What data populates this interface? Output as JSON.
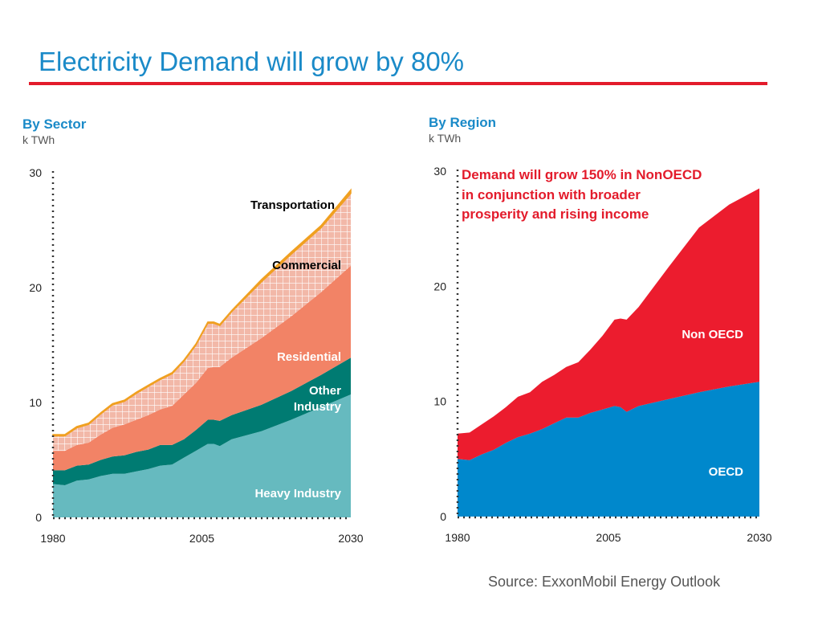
{
  "title": "Electricity Demand will grow by 80%",
  "source": "Source:  ExxonMobil Energy Outlook",
  "colors": {
    "title": "#1a8ac8",
    "rule": "#e31b2b",
    "heavy_industry": "#66babf",
    "other_industry": "#007b72",
    "residential": "#f28366",
    "commercial": "#f2b8a8",
    "transportation": "#f0a020",
    "oecd": "#0088cc",
    "non_oecd": "#ec1c2e"
  },
  "chart_data": [
    {
      "type": "area",
      "subtitle": "By Sector",
      "unit_label": "k TWh",
      "stacked": true,
      "x_ticks": [
        "1980",
        "2005",
        "2030"
      ],
      "y_ticks": [
        "0",
        "10",
        "20",
        "30"
      ],
      "ylim": [
        0,
        30
      ],
      "xlim": [
        1980,
        2030
      ],
      "grid": false,
      "x": [
        1980,
        1982,
        1984,
        1986,
        1988,
        1990,
        1992,
        1994,
        1996,
        1998,
        2000,
        2002,
        2004,
        2006,
        2007,
        2008,
        2010,
        2015,
        2020,
        2025,
        2030
      ],
      "series": [
        {
          "name": "Heavy Industry",
          "label": "Heavy Industry",
          "values": [
            2.9,
            2.8,
            3.2,
            3.3,
            3.6,
            3.8,
            3.8,
            4.0,
            4.2,
            4.5,
            4.6,
            5.2,
            5.8,
            6.4,
            6.4,
            6.2,
            6.8,
            7.5,
            8.5,
            9.6,
            10.7
          ]
        },
        {
          "name": "Other Industry",
          "label": "Other\nIndustry",
          "values": [
            1.2,
            1.3,
            1.3,
            1.3,
            1.4,
            1.5,
            1.6,
            1.7,
            1.7,
            1.8,
            1.7,
            1.6,
            1.8,
            2.1,
            2.1,
            2.2,
            2.1,
            2.3,
            2.5,
            2.8,
            3.2
          ]
        },
        {
          "name": "Residential",
          "label": "Residential",
          "values": [
            1.7,
            1.7,
            1.8,
            1.9,
            2.2,
            2.5,
            2.7,
            2.8,
            3.0,
            3.1,
            3.4,
            3.9,
            4.1,
            4.5,
            4.6,
            4.7,
            5.0,
            5.8,
            6.5,
            7.2,
            8.0
          ]
        },
        {
          "name": "Commercial",
          "label": "Commercial",
          "values": [
            1.3,
            1.3,
            1.5,
            1.6,
            1.8,
            2.0,
            2.0,
            2.3,
            2.5,
            2.6,
            2.8,
            2.9,
            3.3,
            3.9,
            3.8,
            3.6,
            4.0,
            4.9,
            5.4,
            5.6,
            6.3
          ]
        },
        {
          "name": "Transportation",
          "label": "Transportation",
          "values": [
            0.1,
            0.1,
            0.1,
            0.1,
            0.1,
            0.1,
            0.1,
            0.1,
            0.1,
            0.1,
            0.1,
            0.1,
            0.1,
            0.1,
            0.1,
            0.1,
            0.1,
            0.2,
            0.2,
            0.2,
            0.3
          ]
        }
      ]
    },
    {
      "type": "area",
      "subtitle": "By Region",
      "unit_label": "k TWh",
      "stacked": true,
      "x_ticks": [
        "1980",
        "2005",
        "2030"
      ],
      "y_ticks": [
        "0",
        "10",
        "20",
        "30"
      ],
      "ylim": [
        0,
        30
      ],
      "xlim": [
        1980,
        2030
      ],
      "grid": false,
      "annotation": [
        "Demand will grow 150% in NonOECD",
        "in conjunction with broader",
        "prosperity and rising income"
      ],
      "x": [
        1980,
        1982,
        1984,
        1986,
        1988,
        1990,
        1992,
        1994,
        1996,
        1998,
        2000,
        2002,
        2004,
        2006,
        2007,
        2008,
        2010,
        2015,
        2020,
        2025,
        2030
      ],
      "series": [
        {
          "name": "OECD",
          "label": "OECD",
          "values": [
            5.0,
            4.9,
            5.4,
            5.8,
            6.4,
            6.9,
            7.2,
            7.6,
            8.1,
            8.6,
            8.6,
            9.0,
            9.3,
            9.6,
            9.5,
            9.1,
            9.6,
            10.2,
            10.8,
            11.3,
            11.7
          ]
        },
        {
          "name": "Non OECD",
          "label": "Non OECD",
          "values": [
            2.2,
            2.4,
            2.6,
            2.9,
            3.1,
            3.5,
            3.6,
            4.1,
            4.2,
            4.4,
            4.8,
            5.5,
            6.4,
            7.5,
            7.7,
            8.0,
            8.6,
            11.5,
            14.3,
            15.8,
            16.8
          ]
        }
      ]
    }
  ]
}
